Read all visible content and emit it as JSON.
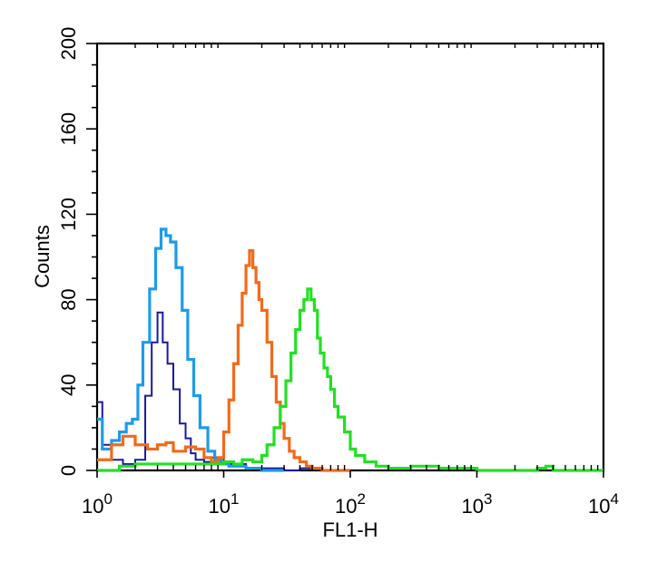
{
  "chart_data": {
    "type": "line",
    "title": "",
    "xlabel": "FL1-H",
    "ylabel": "Counts",
    "x_scale": "log",
    "xlim": [
      1,
      10000
    ],
    "ylim": [
      0,
      200
    ],
    "x_ticks": [
      {
        "value": 1,
        "base": "10",
        "exp": "0"
      },
      {
        "value": 10,
        "base": "10",
        "exp": "1"
      },
      {
        "value": 100,
        "base": "10",
        "exp": "2"
      },
      {
        "value": 1000,
        "base": "10",
        "exp": "3"
      },
      {
        "value": 10000,
        "base": "10",
        "exp": "4"
      }
    ],
    "y_ticks": [
      "0",
      "40",
      "80",
      "120",
      "160",
      "200"
    ],
    "grid": false,
    "legend": "none",
    "series": [
      {
        "color": "#1a1aa0",
        "x": [
          1,
          1.1,
          1.3,
          1.6,
          2.0,
          2.4,
          2.7,
          3.0,
          3.3,
          3.6,
          4.0,
          4.5,
          5.0,
          5.5,
          6.0,
          7.0,
          8.0,
          10,
          15,
          30,
          40,
          60,
          100
        ],
        "y": [
          32,
          12,
          5,
          3,
          5,
          35,
          60,
          74,
          60,
          50,
          38,
          22,
          15,
          8,
          5,
          4,
          6,
          3,
          1,
          0,
          1,
          0,
          0
        ]
      },
      {
        "color": "#1e9be8",
        "x": [
          1,
          1.1,
          1.3,
          1.5,
          1.7,
          1.9,
          2.1,
          2.3,
          2.6,
          2.9,
          3.2,
          3.5,
          3.8,
          4.2,
          4.7,
          5.2,
          5.8,
          6.5,
          7.5,
          8.5,
          9.5,
          11,
          15,
          20,
          30
        ],
        "y": [
          24,
          10,
          14,
          18,
          22,
          24,
          40,
          60,
          85,
          104,
          113,
          110,
          107,
          95,
          75,
          52,
          35,
          20,
          9,
          5,
          3,
          2,
          1,
          0,
          0
        ]
      },
      {
        "color": "#f26a1b",
        "x": [
          1,
          1.3,
          1.6,
          2.0,
          2.5,
          3.0,
          3.5,
          4.0,
          5.0,
          6.0,
          7.0,
          8.0,
          9.0,
          10,
          11,
          12,
          13,
          14,
          15,
          16,
          17,
          18,
          19,
          20,
          22,
          24,
          26,
          28,
          30,
          33,
          36,
          40,
          45,
          50,
          60,
          70,
          80,
          100
        ],
        "y": [
          5,
          12,
          16,
          12,
          10,
          12,
          13,
          9,
          11,
          10,
          6,
          4,
          6,
          18,
          33,
          50,
          68,
          83,
          96,
          103,
          95,
          88,
          80,
          75,
          60,
          44,
          32,
          22,
          15,
          9,
          6,
          4,
          2,
          1,
          0,
          0,
          0,
          0
        ]
      },
      {
        "color": "#22e022",
        "x": [
          1,
          1.5,
          2,
          3,
          4,
          6,
          8,
          10,
          12,
          14,
          17,
          20,
          22,
          25,
          28,
          31,
          34,
          37,
          40,
          43,
          46,
          49,
          52,
          55,
          58,
          62,
          66,
          70,
          75,
          80,
          90,
          100,
          110,
          130,
          160,
          200,
          300,
          500,
          1000,
          3000,
          3500,
          4000,
          10000
        ],
        "y": [
          0,
          2,
          3,
          3,
          3,
          3,
          3,
          4,
          3,
          5,
          4,
          7,
          12,
          20,
          30,
          42,
          55,
          66,
          75,
          80,
          85,
          80,
          75,
          62,
          55,
          48,
          44,
          38,
          30,
          25,
          18,
          10,
          7,
          4,
          2,
          1,
          2,
          1,
          0,
          1,
          2,
          0,
          0
        ]
      }
    ]
  }
}
